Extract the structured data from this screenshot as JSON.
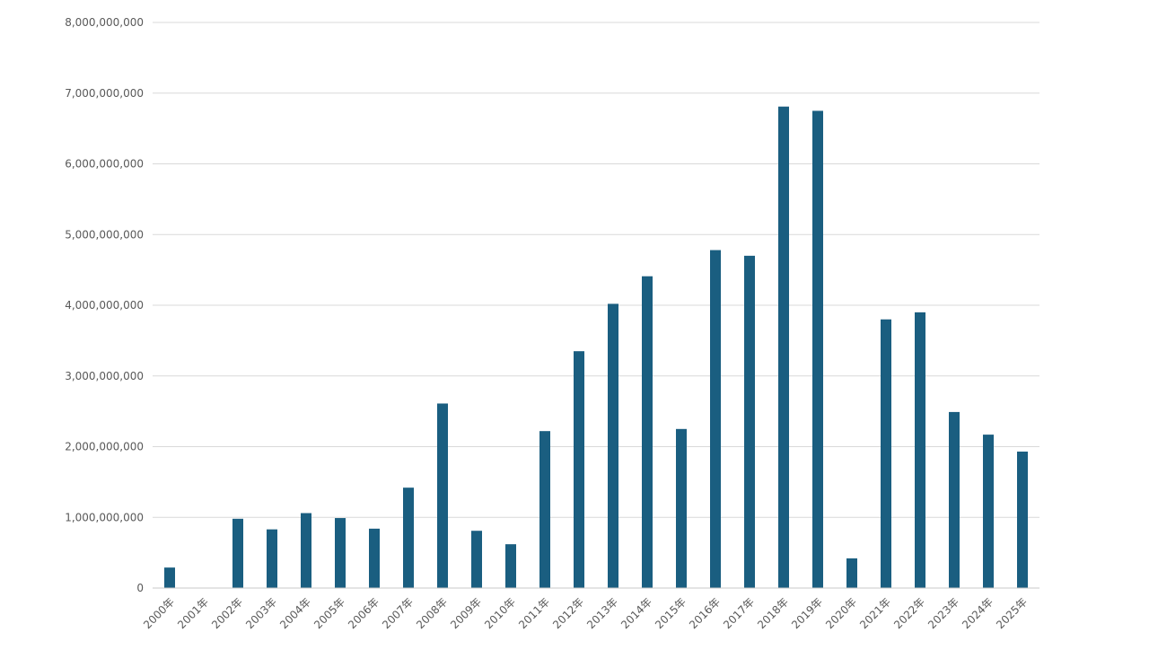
{
  "chart_data": {
    "type": "bar",
    "title": "",
    "xlabel": "",
    "ylabel": "",
    "categories": [
      "2000年",
      "2001年",
      "2002年",
      "2003年",
      "2004年",
      "2005年",
      "2006年",
      "2007年",
      "2008年",
      "2009年",
      "2010年",
      "2011年",
      "2012年",
      "2013年",
      "2014年",
      "2015年",
      "2016年",
      "2017年",
      "2018年",
      "2019年",
      "2020年",
      "2021年",
      "2022年",
      "2023年",
      "2024年",
      "2025年"
    ],
    "values": [
      290000000,
      0,
      980000000,
      830000000,
      1060000000,
      990000000,
      840000000,
      1420000000,
      2610000000,
      810000000,
      620000000,
      2220000000,
      3350000000,
      4020000000,
      4410000000,
      2250000000,
      4780000000,
      4700000000,
      6810000000,
      6750000000,
      420000000,
      3800000000,
      3900000000,
      2490000000,
      2170000000,
      1930000000
    ],
    "ylim": [
      0,
      8000000000
    ],
    "yticks": [
      0,
      1000000000,
      2000000000,
      3000000000,
      4000000000,
      5000000000,
      6000000000,
      7000000000,
      8000000000
    ],
    "ytick_labels": [
      "0",
      "1,000,000,000",
      "2,000,000,000",
      "3,000,000,000",
      "4,000,000,000",
      "5,000,000,000",
      "6,000,000,000",
      "7,000,000,000",
      "8,000,000,000"
    ],
    "grid": true,
    "legend": "none",
    "colors": {
      "bar": "#1a5e80",
      "grid": "#d9d9d9",
      "axis": "#c8c8c8",
      "text": "#595959"
    }
  }
}
